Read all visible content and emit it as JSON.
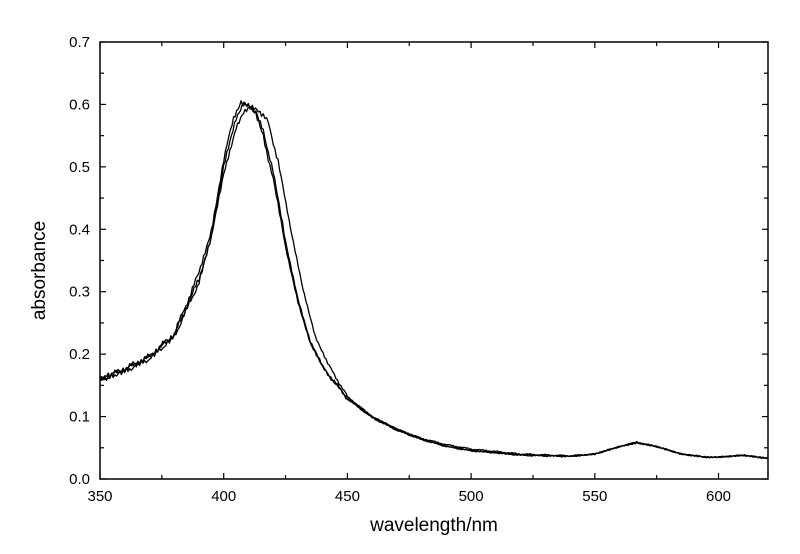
{
  "chart_data": {
    "type": "line",
    "title": "",
    "xlabel": "wavelength/nm",
    "ylabel": "absorbance",
    "xlim": [
      350,
      620
    ],
    "ylim": [
      0.0,
      0.7
    ],
    "xticks": [
      350,
      400,
      450,
      500,
      550,
      600
    ],
    "xtick_labels": [
      "350",
      "400",
      "450",
      "500",
      "550",
      "600"
    ],
    "yticks": [
      0.0,
      0.1,
      0.2,
      0.3,
      0.4,
      0.5,
      0.6,
      0.7
    ],
    "ytick_labels": [
      "0.0",
      "0.1",
      "0.2",
      "0.3",
      "0.4",
      "0.5",
      "0.6",
      "0.7"
    ],
    "grid": false,
    "legend": "none",
    "line_color": "#000000",
    "series": [
      {
        "x": [
          350,
          360,
          370,
          380,
          390,
          395,
          400,
          405,
          408,
          410,
          413,
          416,
          420,
          425,
          430,
          435,
          440,
          450,
          460,
          470,
          480,
          490,
          500,
          520,
          540,
          550,
          560,
          567,
          575,
          585,
          595,
          600,
          610,
          620
        ],
        "values": [
          0.16,
          0.175,
          0.195,
          0.23,
          0.32,
          0.39,
          0.5,
          0.575,
          0.598,
          0.6,
          0.59,
          0.56,
          0.49,
          0.38,
          0.29,
          0.22,
          0.18,
          0.13,
          0.1,
          0.08,
          0.065,
          0.055,
          0.048,
          0.04,
          0.037,
          0.04,
          0.052,
          0.058,
          0.052,
          0.04,
          0.035,
          0.035,
          0.038,
          0.033
        ]
      },
      {
        "x": [
          350,
          360,
          370,
          380,
          390,
          395,
          400,
          405,
          408,
          411,
          414,
          418,
          422,
          427,
          432,
          437,
          442,
          450,
          460,
          470,
          480,
          490,
          500,
          520,
          540,
          550,
          560,
          567,
          575,
          585,
          595,
          600,
          610,
          620
        ],
        "values": [
          0.16,
          0.173,
          0.193,
          0.228,
          0.315,
          0.385,
          0.49,
          0.565,
          0.59,
          0.6,
          0.593,
          0.57,
          0.51,
          0.4,
          0.305,
          0.23,
          0.185,
          0.132,
          0.1,
          0.08,
          0.064,
          0.053,
          0.046,
          0.038,
          0.036,
          0.04,
          0.052,
          0.058,
          0.052,
          0.04,
          0.035,
          0.035,
          0.038,
          0.033
        ]
      },
      {
        "x": [
          350,
          360,
          370,
          380,
          390,
          395,
          400,
          404,
          407,
          410,
          413,
          416,
          420,
          425,
          430,
          435,
          440,
          450,
          460,
          470,
          480,
          490,
          500,
          520,
          540,
          550,
          560,
          567,
          575,
          585,
          595,
          600,
          610,
          620
        ],
        "values": [
          0.158,
          0.176,
          0.196,
          0.232,
          0.33,
          0.4,
          0.51,
          0.58,
          0.605,
          0.6,
          0.585,
          0.55,
          0.48,
          0.37,
          0.285,
          0.218,
          0.178,
          0.128,
          0.098,
          0.078,
          0.063,
          0.052,
          0.045,
          0.039,
          0.037,
          0.04,
          0.052,
          0.059,
          0.052,
          0.04,
          0.035,
          0.035,
          0.038,
          0.033
        ]
      }
    ]
  }
}
